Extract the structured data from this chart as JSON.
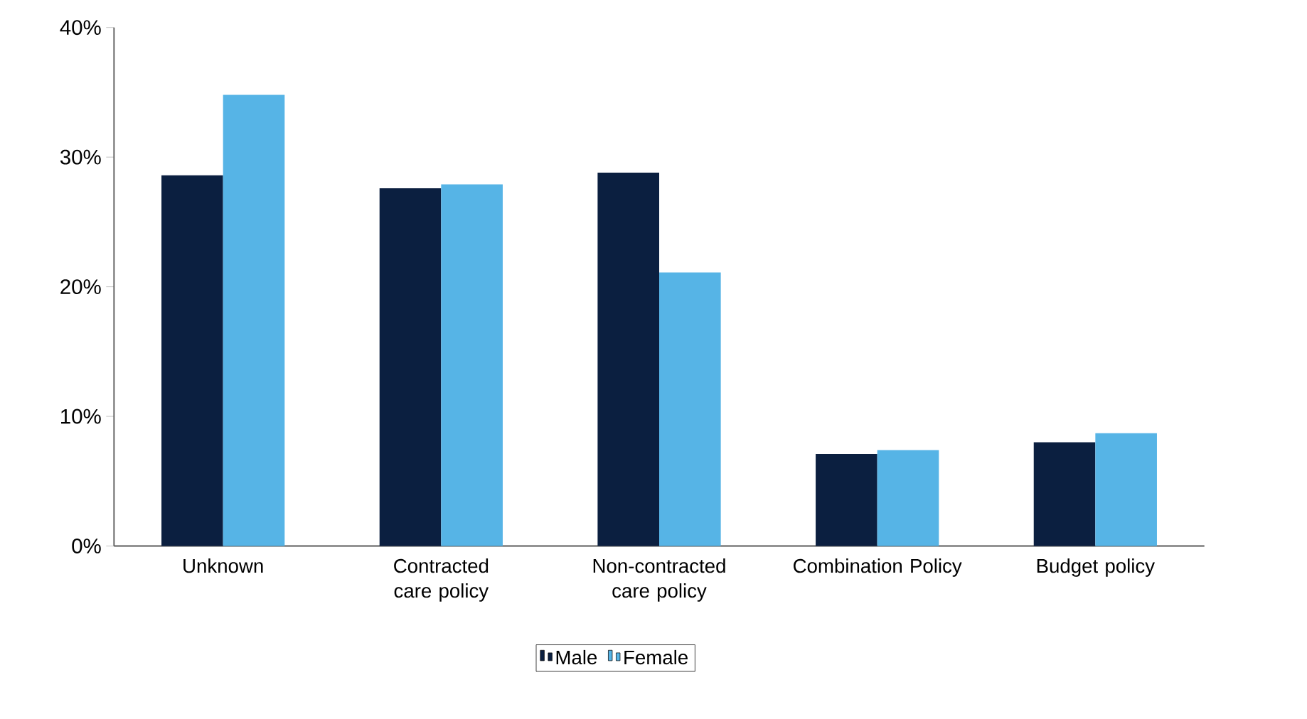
{
  "chart_data": {
    "type": "bar",
    "categories": [
      "Unknown",
      "Contracted care policy",
      "Non-contracted care policy",
      "Combination Policy",
      "Budget policy"
    ],
    "series": [
      {
        "name": "Male",
        "color": "#0b1f40",
        "values": [
          28.6,
          27.6,
          28.8,
          7.1,
          8.0
        ]
      },
      {
        "name": "Female",
        "color": "#56b4e6",
        "values": [
          34.8,
          27.9,
          21.1,
          7.4,
          8.7
        ]
      }
    ],
    "ylim": [
      0,
      40
    ],
    "yticks": [
      {
        "value": 0,
        "label": "0%"
      },
      {
        "value": 10,
        "label": "10%"
      },
      {
        "value": 20,
        "label": "20%"
      },
      {
        "value": 30,
        "label": "30%"
      },
      {
        "value": 40,
        "label": "40%"
      }
    ],
    "grid": false,
    "legend": "bottom"
  }
}
